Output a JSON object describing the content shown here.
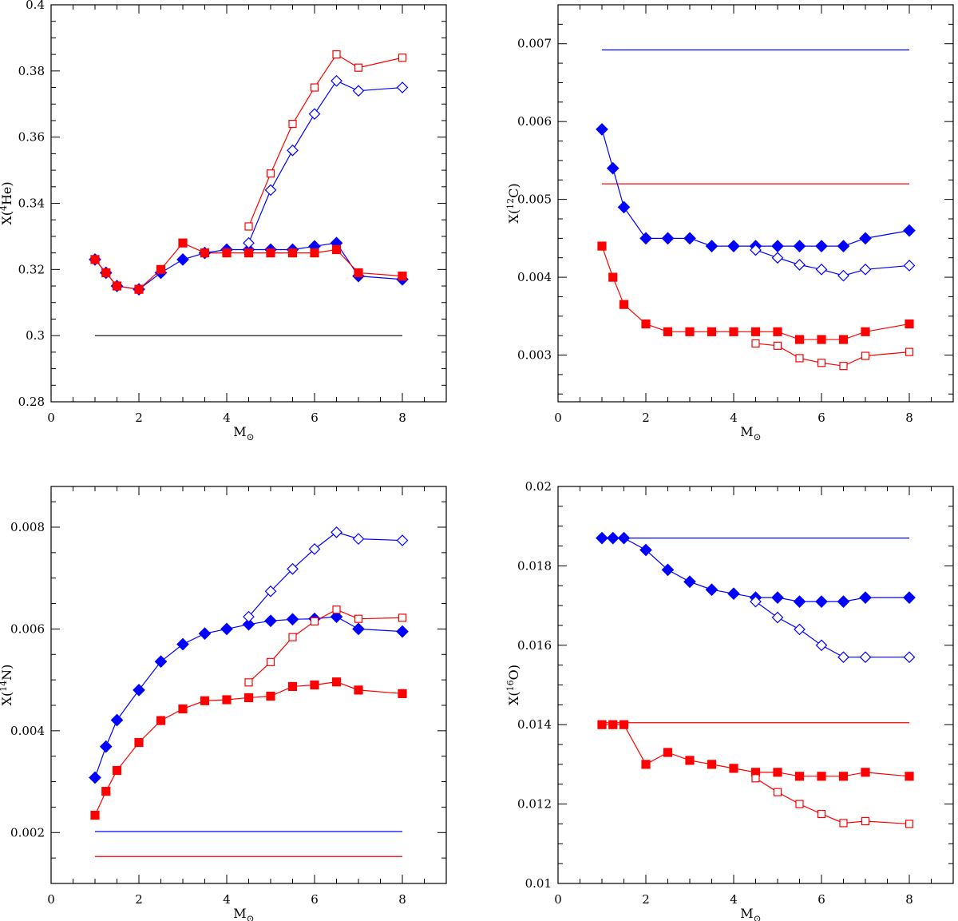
{
  "colors": {
    "blue": "#0000ff",
    "red": "#ff0000",
    "black": "#000000"
  },
  "chart_data": [
    {
      "id": "he4",
      "type": "line",
      "title": "",
      "xlabel": "M",
      "xlabel_sub": "⊙",
      "ylabel_pre": "X(",
      "ylabel_sup": "4",
      "ylabel_post": "He)",
      "xlim": [
        0,
        9
      ],
      "ylim": [
        0.28,
        0.4
      ],
      "xticks": [
        0,
        2,
        4,
        6,
        8
      ],
      "xtick_labels": [
        "0",
        "2",
        "4",
        "6",
        "8"
      ],
      "yticks": [
        0.28,
        0.3,
        0.32,
        0.34,
        0.36,
        0.38,
        0.4
      ],
      "ytick_labels": [
        "0.28",
        "0.3",
        "0.32",
        "0.34",
        "0.36",
        "0.38",
        "0.4"
      ],
      "series": [
        {
          "name": "blue-filled",
          "color": "blue",
          "marker": "diamond",
          "filled": true,
          "x": [
            1,
            1.25,
            1.5,
            2,
            2.5,
            3,
            3.5,
            4,
            4.5,
            5,
            5.5,
            6,
            6.5,
            7,
            8
          ],
          "y": [
            0.323,
            0.319,
            0.315,
            0.314,
            0.319,
            0.323,
            0.325,
            0.326,
            0.326,
            0.326,
            0.326,
            0.327,
            0.328,
            0.318,
            0.317
          ]
        },
        {
          "name": "red-filled",
          "color": "red",
          "marker": "square",
          "filled": true,
          "x": [
            1,
            1.25,
            1.5,
            2,
            2.5,
            3,
            3.5,
            4,
            4.5,
            5,
            5.5,
            6,
            6.5,
            7,
            8
          ],
          "y": [
            0.323,
            0.319,
            0.315,
            0.314,
            0.32,
            0.328,
            0.325,
            0.325,
            0.325,
            0.325,
            0.325,
            0.325,
            0.326,
            0.319,
            0.318
          ]
        },
        {
          "name": "blue-open",
          "color": "blue",
          "marker": "diamond",
          "filled": false,
          "x": [
            4.5,
            5,
            5.5,
            6,
            6.5,
            7,
            8
          ],
          "y": [
            0.328,
            0.344,
            0.356,
            0.367,
            0.377,
            0.374,
            0.375
          ]
        },
        {
          "name": "red-open",
          "color": "red",
          "marker": "square",
          "filled": false,
          "x": [
            4.5,
            5,
            5.5,
            6,
            6.5,
            7,
            8
          ],
          "y": [
            0.333,
            0.349,
            0.364,
            0.375,
            0.385,
            0.381,
            0.384
          ]
        }
      ],
      "hlines": [
        {
          "color": "black",
          "y": 0.3,
          "x": [
            1,
            8
          ]
        }
      ]
    },
    {
      "id": "c12",
      "type": "line",
      "title": "",
      "xlabel": "M",
      "xlabel_sub": "⊙",
      "ylabel_pre": "X(",
      "ylabel_sup": "12",
      "ylabel_post": "C)",
      "xlim": [
        0,
        9
      ],
      "ylim": [
        0.0024,
        0.0075
      ],
      "xticks": [
        0,
        2,
        4,
        6,
        8
      ],
      "xtick_labels": [
        "0",
        "2",
        "4",
        "6",
        "8"
      ],
      "yticks": [
        0.003,
        0.004,
        0.005,
        0.006,
        0.007
      ],
      "ytick_labels": [
        "0.003",
        "0.004",
        "0.005",
        "0.006",
        "0.007"
      ],
      "series": [
        {
          "name": "blue-filled",
          "color": "blue",
          "marker": "diamond",
          "filled": true,
          "x": [
            1,
            1.25,
            1.5,
            2,
            2.5,
            3,
            3.5,
            4,
            4.5,
            5,
            5.5,
            6,
            6.5,
            7,
            8
          ],
          "y": [
            0.0059,
            0.0054,
            0.0049,
            0.0045,
            0.0045,
            0.0045,
            0.0044,
            0.0044,
            0.0044,
            0.0044,
            0.0044,
            0.0044,
            0.0044,
            0.0045,
            0.0046
          ]
        },
        {
          "name": "blue-open",
          "color": "blue",
          "marker": "diamond",
          "filled": false,
          "x": [
            4.5,
            5,
            5.5,
            6,
            6.5,
            7,
            8
          ],
          "y": [
            0.00435,
            0.00425,
            0.00416,
            0.0041,
            0.00402,
            0.0041,
            0.00415
          ]
        },
        {
          "name": "red-filled",
          "color": "red",
          "marker": "square",
          "filled": true,
          "x": [
            1,
            1.25,
            1.5,
            2,
            2.5,
            3,
            3.5,
            4,
            4.5,
            5,
            5.5,
            6,
            6.5,
            7,
            8
          ],
          "y": [
            0.0044,
            0.004,
            0.00365,
            0.0034,
            0.0033,
            0.0033,
            0.0033,
            0.0033,
            0.0033,
            0.0033,
            0.0032,
            0.0032,
            0.0032,
            0.0033,
            0.0034
          ]
        },
        {
          "name": "red-open",
          "color": "red",
          "marker": "square",
          "filled": false,
          "x": [
            4.5,
            5,
            5.5,
            6,
            6.5,
            7,
            8
          ],
          "y": [
            0.00315,
            0.00312,
            0.00296,
            0.0029,
            0.00286,
            0.00299,
            0.00304
          ]
        }
      ],
      "hlines": [
        {
          "color": "blue",
          "y": 0.00692,
          "x": [
            1,
            8
          ]
        },
        {
          "color": "red",
          "y": 0.0052,
          "x": [
            1,
            8
          ]
        }
      ]
    },
    {
      "id": "n14",
      "type": "line",
      "title": "",
      "xlabel": "M",
      "xlabel_sub": "⊙",
      "ylabel_pre": "X(",
      "ylabel_sup": "14",
      "ylabel_post": "N)",
      "xlim": [
        0,
        9
      ],
      "ylim": [
        0.001,
        0.0088
      ],
      "xticks": [
        0,
        2,
        4,
        6,
        8
      ],
      "xtick_labels": [
        "0",
        "2",
        "4",
        "6",
        "8"
      ],
      "yticks": [
        0.002,
        0.004,
        0.006,
        0.008
      ],
      "ytick_labels": [
        "0.002",
        "0.004",
        "0.006",
        "0.008"
      ],
      "series": [
        {
          "name": "blue-filled",
          "color": "blue",
          "marker": "diamond",
          "filled": true,
          "x": [
            1,
            1.25,
            1.5,
            2,
            2.5,
            3,
            3.5,
            4,
            4.5,
            5,
            5.5,
            6,
            6.5,
            7,
            8
          ],
          "y": [
            0.00308,
            0.00369,
            0.00421,
            0.0048,
            0.00536,
            0.0057,
            0.00591,
            0.006,
            0.00609,
            0.00616,
            0.00619,
            0.0062,
            0.00624,
            0.006,
            0.00595
          ]
        },
        {
          "name": "blue-open",
          "color": "blue",
          "marker": "diamond",
          "filled": false,
          "x": [
            4.5,
            5,
            5.5,
            6,
            6.5,
            7,
            8
          ],
          "y": [
            0.00624,
            0.00674,
            0.00718,
            0.00757,
            0.0079,
            0.00777,
            0.00774
          ]
        },
        {
          "name": "red-filled",
          "color": "red",
          "marker": "square",
          "filled": true,
          "x": [
            1,
            1.25,
            1.5,
            2,
            2.5,
            3,
            3.5,
            4,
            4.5,
            5,
            5.5,
            6,
            6.5,
            7,
            8
          ],
          "y": [
            0.00234,
            0.00281,
            0.00322,
            0.00377,
            0.0042,
            0.00443,
            0.00459,
            0.00461,
            0.00465,
            0.00468,
            0.00487,
            0.0049,
            0.00496,
            0.0048,
            0.00473
          ]
        },
        {
          "name": "red-open",
          "color": "red",
          "marker": "square",
          "filled": false,
          "x": [
            4.5,
            5,
            5.5,
            6,
            6.5,
            7,
            8
          ],
          "y": [
            0.00495,
            0.00535,
            0.00584,
            0.00615,
            0.00638,
            0.0062,
            0.00622
          ]
        }
      ],
      "hlines": [
        {
          "color": "blue",
          "y": 0.00202,
          "x": [
            1,
            8
          ]
        },
        {
          "color": "red",
          "y": 0.00153,
          "x": [
            1,
            8
          ]
        }
      ]
    },
    {
      "id": "o16",
      "type": "line",
      "title": "",
      "xlabel": "M",
      "xlabel_sub": "⊙",
      "ylabel_pre": "X(",
      "ylabel_sup": "16",
      "ylabel_post": "O)",
      "xlim": [
        0,
        9
      ],
      "ylim": [
        0.01,
        0.02
      ],
      "xticks": [
        0,
        2,
        4,
        6,
        8
      ],
      "xtick_labels": [
        "0",
        "2",
        "4",
        "6",
        "8"
      ],
      "yticks": [
        0.01,
        0.012,
        0.014,
        0.016,
        0.018,
        0.02
      ],
      "ytick_labels": [
        "0.01",
        "0.012",
        "0.014",
        "0.016",
        "0.018",
        "0.02"
      ],
      "series": [
        {
          "name": "blue-filled",
          "color": "blue",
          "marker": "diamond",
          "filled": true,
          "x": [
            1,
            1.25,
            1.5,
            2,
            2.5,
            3,
            3.5,
            4,
            4.5,
            5,
            5.5,
            6,
            6.5,
            7,
            8
          ],
          "y": [
            0.0187,
            0.0187,
            0.0187,
            0.0184,
            0.0179,
            0.0176,
            0.0174,
            0.0173,
            0.0172,
            0.0172,
            0.0171,
            0.0171,
            0.0171,
            0.0172,
            0.0172
          ]
        },
        {
          "name": "blue-open",
          "color": "blue",
          "marker": "diamond",
          "filled": false,
          "x": [
            4.5,
            5,
            5.5,
            6,
            6.5,
            7,
            8
          ],
          "y": [
            0.0171,
            0.0167,
            0.0164,
            0.016,
            0.0157,
            0.0157,
            0.0157
          ]
        },
        {
          "name": "red-filled",
          "color": "red",
          "marker": "square",
          "filled": true,
          "x": [
            1,
            1.25,
            1.5,
            2,
            2.5,
            3,
            3.5,
            4,
            4.5,
            5,
            5.5,
            6,
            6.5,
            7,
            8
          ],
          "y": [
            0.014,
            0.014,
            0.014,
            0.013,
            0.0133,
            0.0131,
            0.013,
            0.0129,
            0.0128,
            0.0128,
            0.0127,
            0.0127,
            0.0127,
            0.0128,
            0.0127
          ]
        },
        {
          "name": "red-open",
          "color": "red",
          "marker": "square",
          "filled": false,
          "x": [
            4.5,
            5,
            5.5,
            6,
            6.5,
            7,
            8
          ],
          "y": [
            0.01265,
            0.0123,
            0.012,
            0.01175,
            0.01152,
            0.01157,
            0.0115
          ]
        }
      ],
      "hlines": [
        {
          "color": "blue",
          "y": 0.0187,
          "x": [
            1,
            8
          ]
        },
        {
          "color": "red",
          "y": 0.01405,
          "x": [
            1,
            8
          ]
        }
      ]
    }
  ]
}
